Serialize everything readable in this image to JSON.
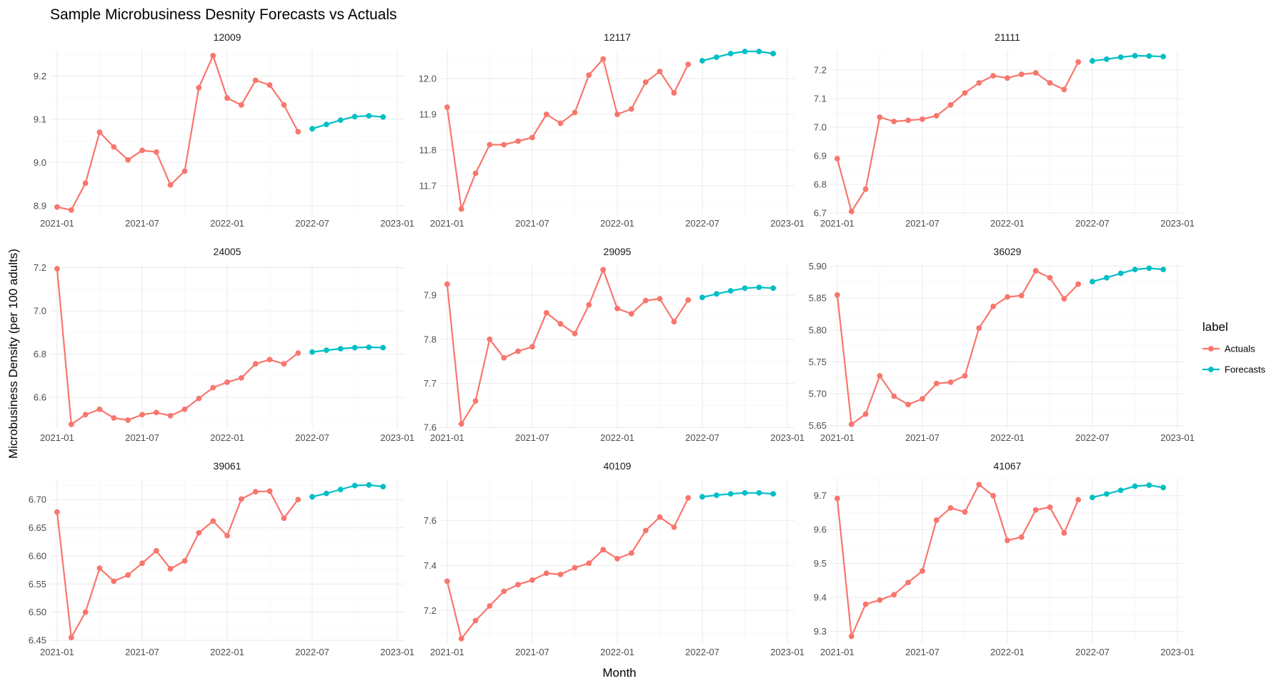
{
  "chart_data": {
    "type": "line",
    "title": "Sample Microbusiness Desnity Forecasts vs Actuals",
    "xlabel": "Month",
    "ylabel": "Microbusiness Density (per 100 adults)",
    "x_ticks": [
      "2021-01",
      "2021-07",
      "2022-01",
      "2022-07",
      "2023-01"
    ],
    "legend": {
      "title": "label",
      "entries": [
        {
          "name": "Actuals",
          "color": "#F8766D"
        },
        {
          "name": "Forecasts",
          "color": "#00BFC4"
        }
      ]
    },
    "actual_months": [
      "2021-01",
      "2021-02",
      "2021-03",
      "2021-04",
      "2021-05",
      "2021-06",
      "2021-07",
      "2021-08",
      "2021-09",
      "2021-10",
      "2021-11",
      "2021-12",
      "2022-01",
      "2022-02",
      "2022-03",
      "2022-04",
      "2022-05",
      "2022-06"
    ],
    "forecast_months": [
      "2022-07",
      "2022-08",
      "2022-09",
      "2022-10",
      "2022-11",
      "2022-12"
    ],
    "panels": [
      {
        "id": "12009",
        "ylim": [
          8.88,
          9.26
        ],
        "yticks": [
          "8.9",
          "9.0",
          "9.1",
          "9.2"
        ],
        "actuals": [
          8.897,
          8.89,
          8.952,
          9.07,
          9.036,
          9.006,
          9.028,
          9.024,
          8.948,
          8.98,
          9.173,
          9.247,
          9.149,
          9.133,
          9.19,
          9.179,
          9.133,
          9.071
        ],
        "forecasts": [
          9.078,
          9.088,
          9.098,
          9.106,
          9.108,
          9.105
        ]
      },
      {
        "id": "12117",
        "ylim": [
          11.62,
          12.08
        ],
        "yticks": [
          "11.7",
          "11.8",
          "11.9",
          "12.0"
        ],
        "actuals": [
          11.92,
          11.635,
          11.735,
          11.815,
          11.815,
          11.825,
          11.835,
          11.9,
          11.875,
          11.905,
          12.01,
          12.055,
          11.9,
          11.915,
          11.99,
          12.02,
          11.96,
          12.04
        ],
        "forecasts": [
          12.05,
          12.06,
          12.07,
          12.076,
          12.076,
          12.07
        ]
      },
      {
        "id": "21111",
        "ylim": [
          6.695,
          7.27
        ],
        "yticks": [
          "6.7",
          "6.8",
          "6.9",
          "7.0",
          "7.1",
          "7.2"
        ],
        "actuals": [
          6.89,
          6.705,
          6.783,
          7.035,
          7.02,
          7.024,
          7.028,
          7.04,
          7.078,
          7.12,
          7.155,
          7.18,
          7.172,
          7.185,
          7.19,
          7.155,
          7.132,
          7.228
        ],
        "forecasts": [
          7.232,
          7.238,
          7.245,
          7.25,
          7.249,
          7.247
        ]
      },
      {
        "id": "24005",
        "ylim": [
          6.455,
          7.215
        ],
        "yticks": [
          "6.6",
          "6.8",
          "7.0",
          "7.2"
        ],
        "actuals": [
          7.195,
          6.475,
          6.52,
          6.545,
          6.505,
          6.495,
          6.52,
          6.53,
          6.515,
          6.545,
          6.595,
          6.645,
          6.67,
          6.69,
          6.755,
          6.775,
          6.755,
          6.805
        ],
        "forecasts": [
          6.81,
          6.818,
          6.825,
          6.83,
          6.832,
          6.83
        ]
      },
      {
        "id": "29095",
        "ylim": [
          7.597,
          7.97
        ],
        "yticks": [
          "7.6",
          "7.7",
          "7.8",
          "7.9"
        ],
        "actuals": [
          7.925,
          7.608,
          7.66,
          7.8,
          7.758,
          7.773,
          7.783,
          7.86,
          7.835,
          7.813,
          7.878,
          7.958,
          7.87,
          7.858,
          7.888,
          7.892,
          7.84,
          7.889
        ],
        "forecasts": [
          7.895,
          7.903,
          7.91,
          7.916,
          7.918,
          7.916
        ]
      },
      {
        "id": "36029",
        "ylim": [
          5.645,
          5.903
        ],
        "yticks": [
          "5.65",
          "5.70",
          "5.75",
          "5.80",
          "5.85",
          "5.90"
        ],
        "actuals": [
          5.855,
          5.652,
          5.668,
          5.728,
          5.696,
          5.683,
          5.692,
          5.716,
          5.718,
          5.728,
          5.803,
          5.837,
          5.852,
          5.854,
          5.893,
          5.882,
          5.849,
          5.872
        ],
        "forecasts": [
          5.876,
          5.882,
          5.889,
          5.895,
          5.897,
          5.895
        ]
      },
      {
        "id": "39061",
        "ylim": [
          6.445,
          6.737
        ],
        "yticks": [
          "6.45",
          "6.50",
          "6.55",
          "6.60",
          "6.65",
          "6.70"
        ],
        "actuals": [
          6.678,
          6.455,
          6.5,
          6.578,
          6.555,
          6.566,
          6.587,
          6.609,
          6.577,
          6.591,
          6.641,
          6.662,
          6.636,
          6.701,
          6.714,
          6.715,
          6.667,
          6.7
        ],
        "forecasts": [
          6.705,
          6.711,
          6.718,
          6.725,
          6.726,
          6.723
        ]
      },
      {
        "id": "40109",
        "ylim": [
          7.055,
          7.785
        ],
        "yticks": [
          "7.2",
          "7.4",
          "7.6"
        ],
        "actuals": [
          7.33,
          7.075,
          7.155,
          7.22,
          7.285,
          7.315,
          7.335,
          7.365,
          7.36,
          7.39,
          7.41,
          7.47,
          7.43,
          7.455,
          7.555,
          7.615,
          7.57,
          7.7
        ],
        "forecasts": [
          7.705,
          7.712,
          7.718,
          7.722,
          7.722,
          7.718
        ]
      },
      {
        "id": "41067",
        "ylim": [
          9.265,
          9.75
        ],
        "yticks": [
          "9.3",
          "9.4",
          "9.5",
          "9.6",
          "9.7"
        ],
        "actuals": [
          9.692,
          9.285,
          9.38,
          9.392,
          9.408,
          9.444,
          9.478,
          9.628,
          9.664,
          9.652,
          9.733,
          9.7,
          9.568,
          9.578,
          9.658,
          9.666,
          9.59,
          9.688
        ],
        "forecasts": [
          9.695,
          9.705,
          9.716,
          9.728,
          9.731,
          9.724
        ]
      }
    ]
  }
}
